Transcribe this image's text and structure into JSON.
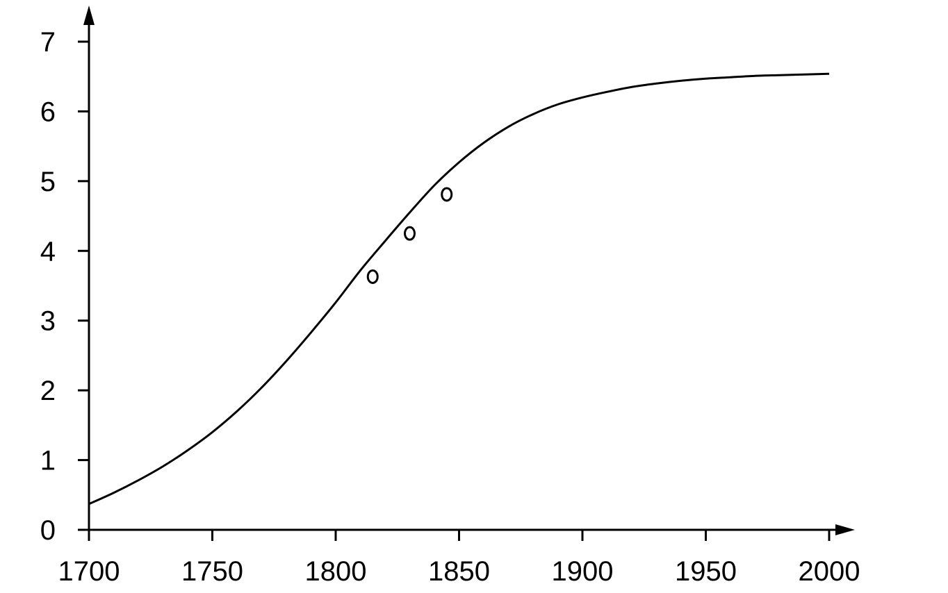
{
  "chart_data": {
    "type": "line",
    "title": "",
    "xlabel": "",
    "ylabel": "",
    "xlim": [
      1700,
      2000
    ],
    "ylim": [
      0,
      7
    ],
    "x_ticks": [
      1700,
      1750,
      1800,
      1850,
      1900,
      1950,
      2000
    ],
    "y_ticks": [
      0,
      1,
      2,
      3,
      4,
      5,
      6,
      7
    ],
    "x_tick_labels": [
      "1700",
      "1750",
      "1800",
      "1850",
      "1900",
      "1950",
      "2000"
    ],
    "y_tick_labels": [
      "0",
      "1",
      "2",
      "3",
      "4",
      "5",
      "6",
      "7"
    ],
    "grid": false,
    "legend": "none",
    "colors": {
      "line": "#000000",
      "axis": "#000000",
      "background": "#ffffff"
    },
    "series": [
      {
        "type": "line",
        "x": [
          1700,
          1710,
          1720,
          1730,
          1740,
          1750,
          1760,
          1770,
          1780,
          1790,
          1800,
          1810,
          1820,
          1830,
          1840,
          1850,
          1860,
          1870,
          1880,
          1890,
          1900,
          1910,
          1920,
          1930,
          1940,
          1950,
          1960,
          1970,
          1980,
          1990,
          2000
        ],
        "y": [
          0.37,
          0.53,
          0.71,
          0.91,
          1.14,
          1.4,
          1.7,
          2.04,
          2.42,
          2.83,
          3.26,
          3.72,
          4.14,
          4.55,
          4.94,
          5.27,
          5.55,
          5.78,
          5.96,
          6.1,
          6.2,
          6.28,
          6.35,
          6.4,
          6.44,
          6.47,
          6.49,
          6.51,
          6.52,
          6.53,
          6.54
        ]
      },
      {
        "type": "scatter",
        "marker": "open-circle",
        "x": [
          1815,
          1830,
          1845
        ],
        "y": [
          3.63,
          4.25,
          4.81
        ]
      }
    ]
  }
}
